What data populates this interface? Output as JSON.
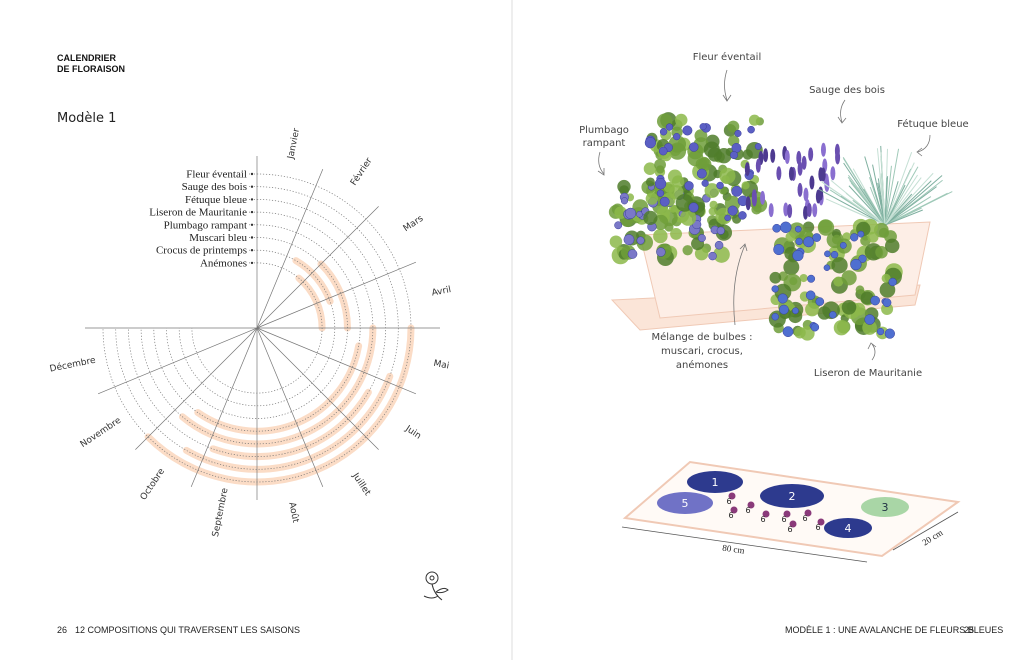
{
  "left_page": {
    "heading": [
      "CALENDRIER",
      "DE FLORAISON"
    ],
    "model": "Modèle 1",
    "months": [
      "Janvier",
      "Février",
      "Mars",
      "Avril",
      "Mai",
      "Juin",
      "Juillet",
      "Août",
      "Septembre",
      "Octobre",
      "Novembre",
      "Décembre"
    ],
    "plants": [
      "Fleur éventail",
      "Sauge des bois",
      "Fétuque bleue",
      "Liseron de Mauritanie",
      "Plumbago rampant",
      "Muscari bleu",
      "Crocus de printemps",
      "Anémones"
    ],
    "footer": {
      "page_number": 26,
      "title": "12 COMPOSITIONS QUI TRAVERSENT LES SAISONS"
    }
  },
  "right_page": {
    "labels": {
      "fleur": "Fleur éventail",
      "sauge": "Sauge des bois",
      "fetuque": "Fétuque bleue",
      "plumbago": [
        "Plumbago",
        "rampant"
      ],
      "bulbes": [
        "Mélange de bulbes :",
        "muscari, crocus,",
        "anémones"
      ],
      "liseron": "Liseron de Mauritanie"
    },
    "plan": {
      "zones": [
        "1",
        "2",
        "3",
        "4",
        "5"
      ],
      "bulbs": [
        "6",
        "6",
        "6",
        "6",
        "6",
        "6",
        "6",
        "6"
      ],
      "length": "80 cm",
      "width": "20 cm"
    },
    "footer": {
      "title": "MODÈLE 1 : UNE AVALANCHE DE FLEURS BLEUES",
      "page_number": 25
    }
  }
}
